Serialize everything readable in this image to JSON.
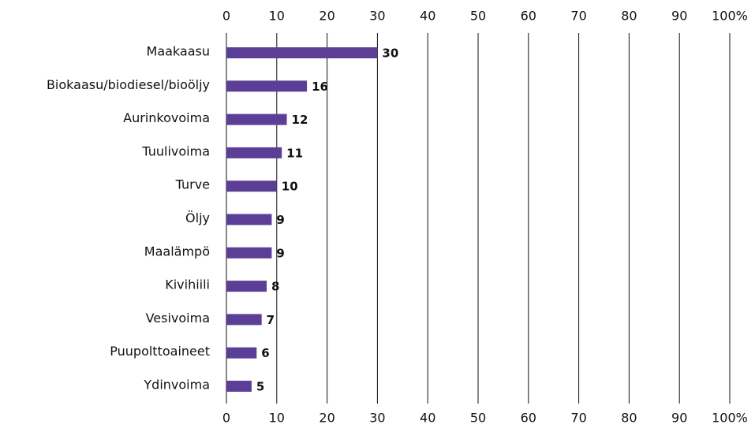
{
  "chart_data": {
    "type": "bar",
    "orientation": "horizontal",
    "categories": [
      "Maakaasu",
      "Biokaasu/biodiesel/bioöljy",
      "Aurinkovoima",
      "Tuulivoima",
      "Turve",
      "Öljy",
      "Maalämpö",
      "Kivihiili",
      "Vesivoima",
      "Puupolttoaineet",
      "Ydinvoima"
    ],
    "values": [
      30,
      16,
      12,
      11,
      10,
      9,
      9,
      8,
      7,
      6,
      5
    ],
    "color": "#5b3f96",
    "xlim": [
      0,
      100
    ],
    "xticks": [
      0,
      10,
      20,
      30,
      40,
      50,
      60,
      70,
      80,
      90,
      {
        "value": 100,
        "label": "100%"
      }
    ],
    "grid": true
  }
}
